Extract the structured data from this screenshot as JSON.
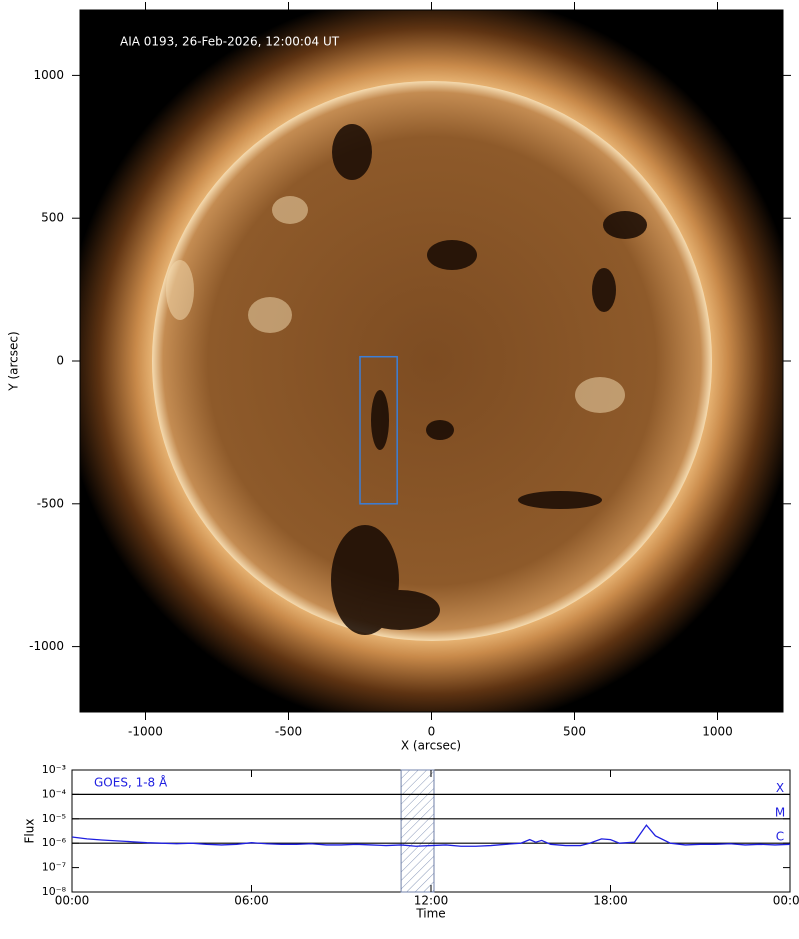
{
  "chart_data": [
    {
      "type": "image",
      "title": "AIA 0193, 26-Feb-2026, 12:00:04 UT",
      "xlabel": "X (arcsec)",
      "ylabel": "Y (arcsec)",
      "xlim": [
        -1229,
        1229
      ],
      "ylim": [
        -1229,
        1229
      ],
      "xticks": [
        -1000,
        -500,
        0,
        500,
        1000
      ],
      "yticks": [
        -1000,
        -500,
        0,
        500,
        1000
      ],
      "roi": {
        "x": [
          -250,
          -120
        ],
        "y": [
          -500,
          15
        ],
        "color": "#3b7fd9"
      }
    },
    {
      "type": "line",
      "xlabel": "Time",
      "ylabel": "Flux",
      "xlim": [
        0,
        24
      ],
      "xticks": [
        {
          "value": 0,
          "label": "00:00"
        },
        {
          "value": 6,
          "label": "06:00"
        },
        {
          "value": 12,
          "label": "12:00"
        },
        {
          "value": 18,
          "label": "18:00"
        },
        {
          "value": 24,
          "label": "00:00"
        }
      ],
      "ylim": [
        1e-08,
        0.001
      ],
      "ylog": true,
      "yticks": [
        {
          "value": 0.001,
          "label": "10⁻³"
        },
        {
          "value": 0.0001,
          "label": "10⁻⁴"
        },
        {
          "value": 1e-05,
          "label": "10⁻⁵"
        },
        {
          "value": 1e-06,
          "label": "10⁻⁶"
        },
        {
          "value": 1e-07,
          "label": "10⁻⁷"
        },
        {
          "value": 1e-08,
          "label": "10⁻⁸"
        }
      ],
      "levels": [
        {
          "label": "X",
          "value": 0.0001
        },
        {
          "label": "M",
          "value": 1e-05
        },
        {
          "label": "C",
          "value": 1e-06
        }
      ],
      "hatch": [
        11,
        12.1
      ],
      "series": [
        {
          "name": "GOES, 1-8 Å",
          "color": "#1f1fe0",
          "x": [
            0,
            0.5,
            1,
            1.5,
            2,
            2.5,
            3,
            3.5,
            4,
            4.5,
            5,
            5.5,
            6,
            6.5,
            7,
            7.5,
            8,
            8.5,
            9,
            9.5,
            10,
            10.5,
            11,
            11.5,
            12,
            12.5,
            13,
            13.5,
            14,
            14.5,
            15,
            15.3,
            15.5,
            15.7,
            16,
            16.5,
            17,
            17.3,
            17.7,
            18,
            18.3,
            18.8,
            19.2,
            19.5,
            20,
            20.5,
            21,
            21.5,
            22,
            22.5,
            23,
            23.5,
            24
          ],
          "values": [
            1.8e-06,
            1.5e-06,
            1.35e-06,
            1.25e-06,
            1.15e-06,
            1.05e-06,
            1e-06,
            9.5e-07,
            1e-06,
            9e-07,
            8.5e-07,
            9e-07,
            1.05e-06,
            9.5e-07,
            9e-07,
            9e-07,
            9.5e-07,
            8.5e-07,
            8.5e-07,
            9e-07,
            8.5e-07,
            8e-07,
            8.5e-07,
            7.5e-07,
            8e-07,
            8.5e-07,
            7.5e-07,
            7.5e-07,
            8e-07,
            9e-07,
            1e-06,
            1.4e-06,
            1.1e-06,
            1.3e-06,
            9e-07,
            8e-07,
            8e-07,
            1e-06,
            1.5e-06,
            1.4e-06,
            1e-06,
            1.1e-06,
            5.5e-06,
            2e-06,
            1e-06,
            8.5e-07,
            9e-07,
            9e-07,
            9.5e-07,
            8.5e-07,
            9e-07,
            8.5e-07,
            9e-07
          ]
        }
      ]
    }
  ]
}
